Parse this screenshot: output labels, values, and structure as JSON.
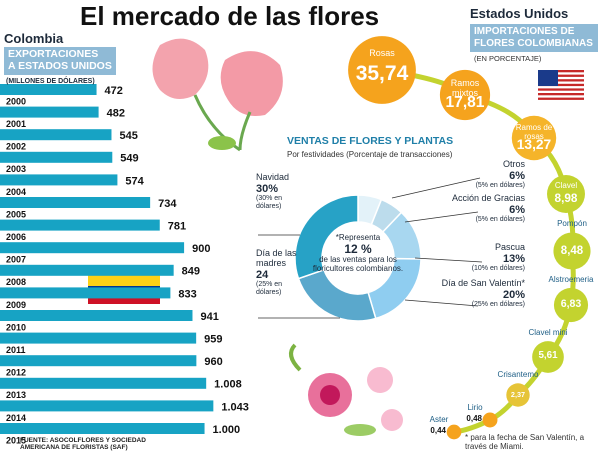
{
  "page": {
    "title": "El mercado de las flores",
    "source": "FUENTE: ASOCOLFLORES Y SOCIEDAD AMERICANA DE FLORISTAS (SAF)",
    "footnote": "* para la fecha de San Valentín, a través de Miami."
  },
  "chart_data": [
    {
      "type": "bar",
      "orientation": "horizontal",
      "region": "Colombia",
      "title_lines": [
        "EXPORTACIONES",
        "A ESTADOS UNIDOS"
      ],
      "subtitle": "(MILLONES DE DÓLARES)",
      "categories": [
        "2000",
        "2001",
        "2002",
        "2003",
        "2004",
        "2005",
        "2006",
        "2007",
        "2008",
        "2009",
        "2010",
        "2011",
        "2012",
        "2013",
        "2014",
        "2015"
      ],
      "values": [
        472,
        482,
        545,
        549,
        574,
        734,
        781,
        900,
        849,
        833,
        941,
        959,
        960,
        1008,
        1043,
        1000
      ],
      "value_labels": [
        "472",
        "482",
        "545",
        "549",
        "574",
        "734",
        "781",
        "900",
        "849",
        "833",
        "941",
        "959",
        "960",
        "1.008",
        "1.043",
        "1.000"
      ],
      "color": "#17a3c4",
      "xlim": [
        0,
        1100
      ]
    },
    {
      "type": "donut",
      "title": "VENTAS DE FLORES Y PLANTAS",
      "subtitle": "Por festividades (Porcentaje de transacciones)",
      "categories": [
        "Otros",
        "Acción de Gracias",
        "Pascua",
        "Día de San Valentín*",
        "Día de las madres",
        "Navidad"
      ],
      "values": [
        6,
        6,
        13,
        20,
        24,
        30
      ],
      "value_labels": [
        "6%",
        "6%",
        "13%",
        "20%",
        "24",
        "30%"
      ],
      "notes": [
        "(5% en dólares)",
        "(5% en dólares)",
        "(10% en dólares)",
        "(25% en dólares)",
        "(25% en dólares)",
        "(30% en dólares)"
      ],
      "colors": [
        "#e3f2f9",
        "#bcdcec",
        "#a8d7f0",
        "#8fcdf0",
        "#5aa8cc",
        "#27a2c6"
      ],
      "center_note": [
        "*Representa",
        "12 %",
        "de las ventas para los floricultores colombianos."
      ]
    },
    {
      "type": "bubble",
      "region": "Estados Unidos",
      "title_lines": [
        "IMPORTACIONES DE",
        "FLORES COLOMBIANAS"
      ],
      "subtitle": "(EN PORCENTAJE)",
      "categories": [
        "Rosas",
        "Ramos mixtos",
        "Ramos de rosas",
        "Clavel",
        "Pompón",
        "Alstroemeria",
        "Clavel mini",
        "Crisantemo",
        "Lirio",
        "Aster"
      ],
      "values": [
        35.74,
        17.81,
        13.27,
        8.98,
        8.48,
        6.83,
        5.61,
        2.37,
        0.48,
        0.44
      ],
      "value_labels": [
        "35,74",
        "17,81",
        "13,27",
        "8,98",
        "8,48",
        "6,83",
        "5,61",
        "2,37",
        "0,48",
        "0,44"
      ],
      "colors": [
        "#f5a31d",
        "#f5a31d",
        "#f5b42a",
        "#c3d32f",
        "#c3d32f",
        "#c3d32f",
        "#c3d32f",
        "#e6c437",
        "#f5a31d",
        "#f5a31d"
      ]
    }
  ]
}
